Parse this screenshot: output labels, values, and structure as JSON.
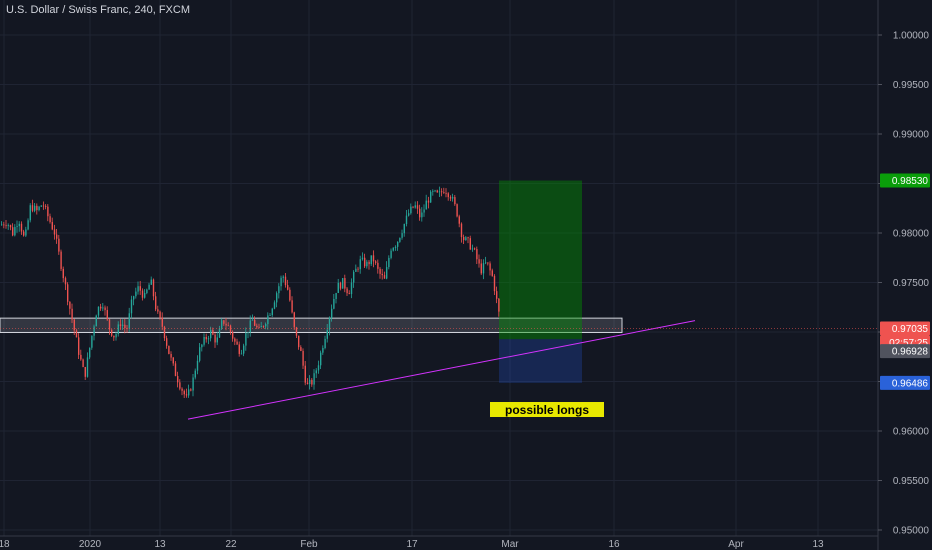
{
  "header": {
    "title": "U.S. Dollar / Swiss Franc, 240, FXCM"
  },
  "annotation": {
    "text": "possible longs"
  },
  "colors": {
    "background": "#131722",
    "grid": "#1f2433",
    "up": "#26a69a",
    "down": "#ef5350",
    "target": "#008f00",
    "stop": "#2962ff",
    "trendline": "#d433ff",
    "label_bg": "#e8e800"
  },
  "badges": {
    "target": {
      "value": "0.98530",
      "color": "#0a9d0a"
    },
    "current": {
      "value": "0.97035",
      "color": "#ef5350"
    },
    "countdown": {
      "value": "02:57:25",
      "color": "#ef5350"
    },
    "entry": {
      "value": "0.96928",
      "color": "#50535e"
    },
    "stop": {
      "value": "0.96486",
      "color": "#2a62d9"
    }
  },
  "chart_data": {
    "type": "candlestick",
    "y_ticks": [
      "1.00000",
      "0.99500",
      "0.99000",
      "0.98500",
      "0.98000",
      "0.97500",
      "0.97000",
      "0.96500",
      "0.96000",
      "0.95500",
      "0.95000"
    ],
    "ylim": [
      0.95,
      1.0
    ],
    "x_ticks": [
      "18",
      "2020",
      "13",
      "22",
      "Feb",
      "17",
      "Mar",
      "16",
      "Apr",
      "13"
    ],
    "grid": true,
    "close_path": [
      [
        0,
        0.9808
      ],
      [
        6,
        0.9812
      ],
      [
        12,
        0.98
      ],
      [
        18,
        0.9815
      ],
      [
        24,
        0.9792
      ],
      [
        30,
        0.9828
      ],
      [
        36,
        0.9822
      ],
      [
        42,
        0.983
      ],
      [
        48,
        0.9815
      ],
      [
        54,
        0.98
      ],
      [
        60,
        0.977
      ],
      [
        66,
        0.974
      ],
      [
        72,
        0.971
      ],
      [
        78,
        0.968
      ],
      [
        84,
        0.9655
      ],
      [
        90,
        0.969
      ],
      [
        96,
        0.9722
      ],
      [
        102,
        0.973
      ],
      [
        108,
        0.9705
      ],
      [
        114,
        0.9695
      ],
      [
        120,
        0.971
      ],
      [
        126,
        0.9702
      ],
      [
        132,
        0.9735
      ],
      [
        138,
        0.9745
      ],
      [
        144,
        0.9735
      ],
      [
        150,
        0.9752
      ],
      [
        156,
        0.972
      ],
      [
        162,
        0.9705
      ],
      [
        168,
        0.968
      ],
      [
        174,
        0.966
      ],
      [
        180,
        0.9645
      ],
      [
        186,
        0.9632
      ],
      [
        192,
        0.965
      ],
      [
        198,
        0.968
      ],
      [
        204,
        0.9692
      ],
      [
        210,
        0.97
      ],
      [
        216,
        0.969
      ],
      [
        222,
        0.9712
      ],
      [
        228,
        0.9705
      ],
      [
        234,
        0.969
      ],
      [
        240,
        0.968
      ],
      [
        246,
        0.97
      ],
      [
        252,
        0.9712
      ],
      [
        258,
        0.97
      ],
      [
        264,
        0.971
      ],
      [
        270,
        0.9722
      ],
      [
        276,
        0.974
      ],
      [
        282,
        0.9758
      ],
      [
        288,
        0.974
      ],
      [
        294,
        0.97
      ],
      [
        300,
        0.968
      ],
      [
        306,
        0.9645
      ],
      [
        312,
        0.965
      ],
      [
        318,
        0.967
      ],
      [
        324,
        0.9695
      ],
      [
        330,
        0.9722
      ],
      [
        336,
        0.9745
      ],
      [
        342,
        0.975
      ],
      [
        348,
        0.974
      ],
      [
        354,
        0.976
      ],
      [
        360,
        0.9772
      ],
      [
        366,
        0.9768
      ],
      [
        372,
        0.9775
      ],
      [
        378,
        0.976
      ],
      [
        384,
        0.9752
      ],
      [
        390,
        0.9785
      ],
      [
        396,
        0.979
      ],
      [
        402,
        0.9805
      ],
      [
        408,
        0.982
      ],
      [
        414,
        0.9828
      ],
      [
        420,
        0.9815
      ],
      [
        426,
        0.9832
      ],
      [
        432,
        0.984
      ],
      [
        438,
        0.9838
      ],
      [
        444,
        0.9845
      ],
      [
        450,
        0.9838
      ],
      [
        456,
        0.9822
      ],
      [
        462,
        0.9795
      ],
      [
        468,
        0.979
      ],
      [
        474,
        0.978
      ],
      [
        480,
        0.9762
      ],
      [
        486,
        0.977
      ],
      [
        492,
        0.9755
      ],
      [
        498,
        0.972
      ],
      [
        502,
        0.9697
      ]
    ],
    "range_lines": [
      0.9714,
      0.96995
    ],
    "trendline": {
      "from": [
        188,
        0.9612
      ],
      "to": [
        695,
        0.97115
      ]
    },
    "long_position": {
      "x_start": 499,
      "x_end": 582,
      "entry": 0.96928,
      "target": 0.9853,
      "stop": 0.96486
    },
    "current_price": 0.97035
  }
}
